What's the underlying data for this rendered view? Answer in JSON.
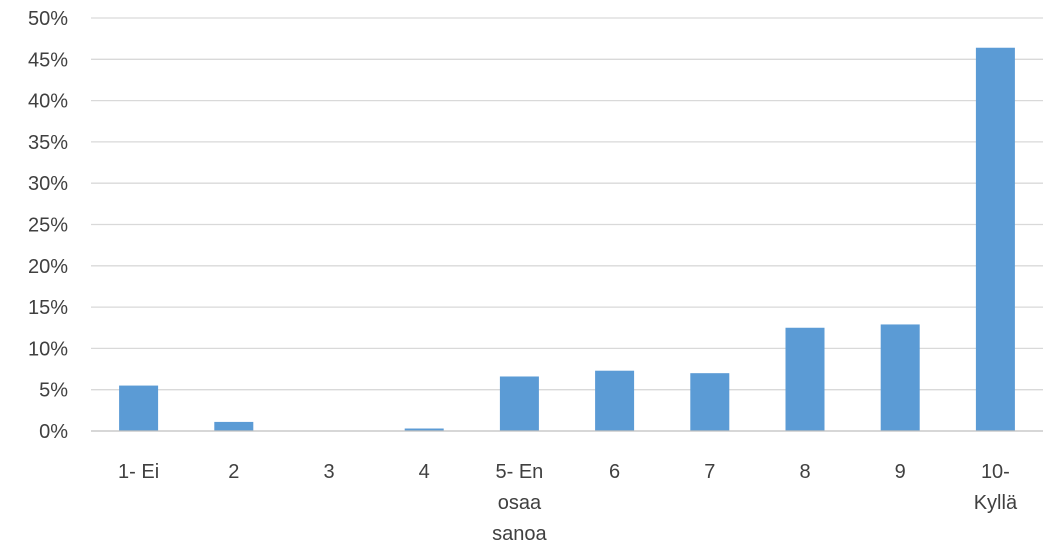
{
  "chart_data": {
    "type": "bar",
    "title": "",
    "xlabel": "",
    "ylabel": "",
    "categories": [
      [
        "1- Ei"
      ],
      [
        "2"
      ],
      [
        "3"
      ],
      [
        "4"
      ],
      [
        "5- En",
        "osaa",
        "sanoa"
      ],
      [
        "6"
      ],
      [
        "7"
      ],
      [
        "8"
      ],
      [
        "9"
      ],
      [
        "10-",
        "Kyllä"
      ]
    ],
    "values": [
      5.5,
      1.1,
      0,
      0.3,
      6.6,
      7.3,
      7.0,
      12.5,
      12.9,
      46.4
    ],
    "ylim": [
      0,
      50
    ],
    "y_ticks": [
      "0%",
      "5%",
      "10%",
      "15%",
      "20%",
      "25%",
      "30%",
      "35%",
      "40%",
      "45%",
      "50%"
    ],
    "grid": true,
    "legend": "none",
    "bar_color": "#5b9bd5"
  }
}
